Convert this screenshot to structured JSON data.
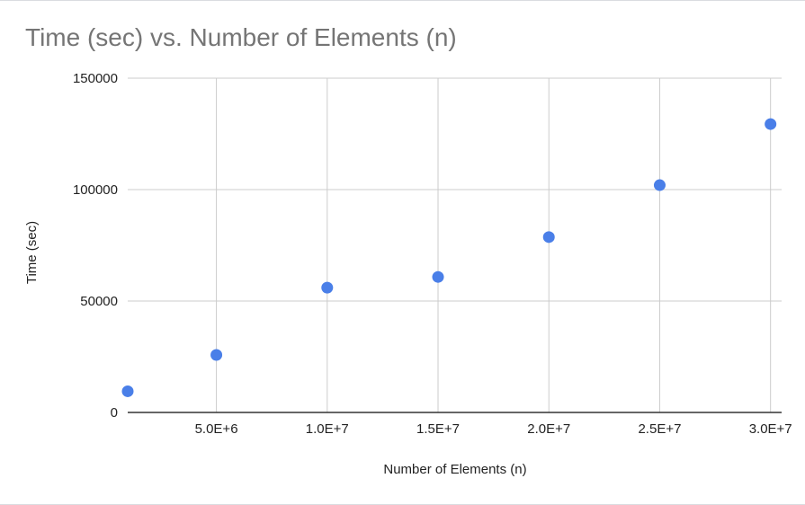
{
  "chart_data": {
    "type": "scatter",
    "title": "Time (sec) vs. Number of Elements (n)",
    "xlabel": "Number of Elements (n)",
    "ylabel": "Time (sec)",
    "xlim": [
      1000000,
      30500000
    ],
    "ylim": [
      0,
      150000
    ],
    "x_ticks": [
      5000000,
      10000000,
      15000000,
      20000000,
      25000000,
      30000000
    ],
    "x_tick_labels": [
      "5.0E+6",
      "1.0E+7",
      "1.5E+7",
      "2.0E+7",
      "2.5E+7",
      "3.0E+7"
    ],
    "y_ticks": [
      0,
      50000,
      100000,
      150000
    ],
    "y_tick_labels": [
      "0",
      "50000",
      "100000",
      "150000"
    ],
    "grid": true,
    "legend": "none",
    "series": [
      {
        "color": "#4a7fe8",
        "x": [
          1000000,
          5000000,
          10000000,
          15000000,
          20000000,
          25000000,
          30000000
        ],
        "y": [
          9500,
          25800,
          56000,
          60800,
          78700,
          102000,
          129400
        ]
      }
    ]
  }
}
